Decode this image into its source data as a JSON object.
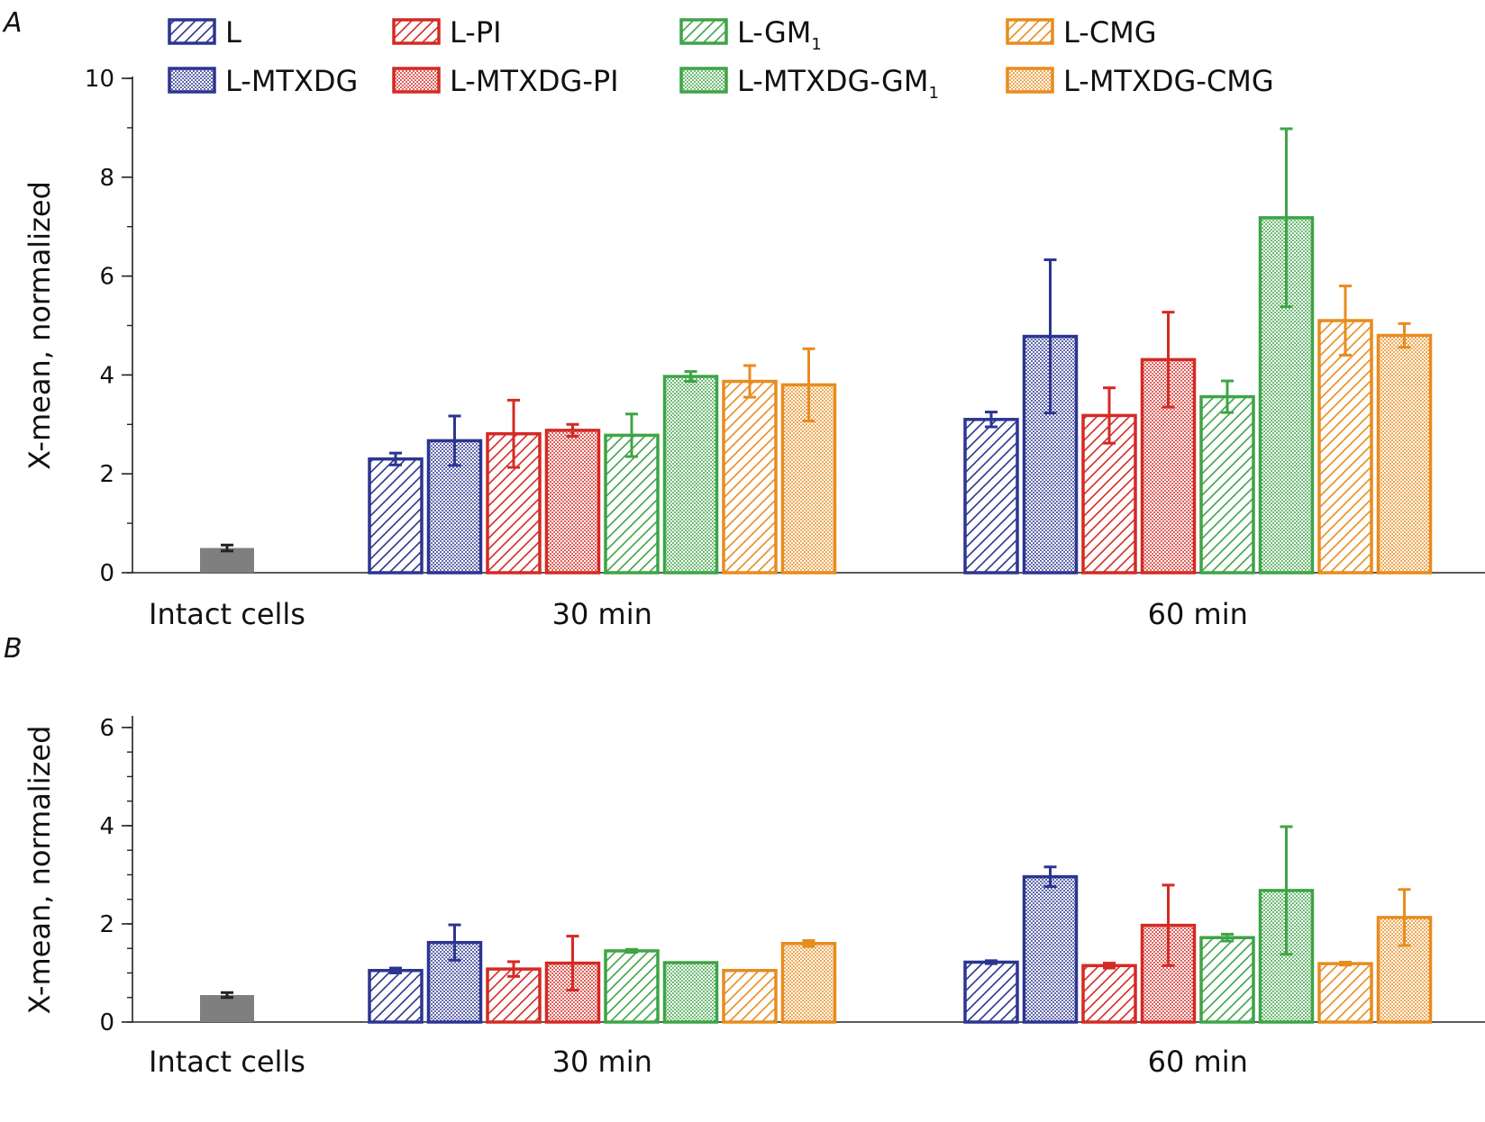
{
  "colors": {
    "L": "#2c3590",
    "L-PI": "#d42a24",
    "L-GM1": "#3fa447",
    "L-CMG": "#e88c1e",
    "intact": "#7f7f7f",
    "axis": "#222222"
  },
  "legend": {
    "entries": [
      {
        "label": "L",
        "sub": "",
        "color_key": "L",
        "pattern": "hatch"
      },
      {
        "label": "L-PI",
        "sub": "",
        "color_key": "L-PI",
        "pattern": "hatch"
      },
      {
        "label": "L-GM",
        "sub": "1",
        "color_key": "L-GM1",
        "pattern": "hatch"
      },
      {
        "label": "L-CMG",
        "sub": "",
        "color_key": "L-CMG",
        "pattern": "hatch"
      },
      {
        "label": "L-MTXDG",
        "sub": "",
        "color_key": "L",
        "pattern": "dots"
      },
      {
        "label": "L-MTXDG-PI",
        "sub": "",
        "color_key": "L-PI",
        "pattern": "dots"
      },
      {
        "label": "L-MTXDG-GM",
        "sub": "1",
        "color_key": "L-GM1",
        "pattern": "dots"
      },
      {
        "label": "L-MTXDG-CMG",
        "sub": "",
        "color_key": "L-CMG",
        "pattern": "dots"
      }
    ]
  },
  "chart_data": [
    {
      "type": "bar",
      "panel": "A",
      "ylabel": "X-mean, normalized",
      "ylim": [
        0,
        10
      ],
      "yticks": [
        0,
        2,
        4,
        6,
        8,
        10
      ],
      "groups": [
        "Intact cells",
        "30 min",
        "60 min"
      ],
      "intact": {
        "value": 0.5,
        "err": 0.06
      },
      "series": [
        {
          "name": "L",
          "color_key": "L",
          "pattern": "hatch",
          "values": [
            2.3,
            3.1
          ],
          "errors": [
            0.12,
            0.15
          ]
        },
        {
          "name": "L-MTXDG",
          "color_key": "L",
          "pattern": "dots",
          "values": [
            2.67,
            4.78
          ],
          "errors": [
            0.5,
            1.55
          ]
        },
        {
          "name": "L-PI",
          "color_key": "L-PI",
          "pattern": "hatch",
          "values": [
            2.81,
            3.18
          ],
          "errors": [
            0.68,
            0.56
          ]
        },
        {
          "name": "L-MTXDG-PI",
          "color_key": "L-PI",
          "pattern": "dots",
          "values": [
            2.88,
            4.31
          ],
          "errors": [
            0.12,
            0.96
          ]
        },
        {
          "name": "L-GM1",
          "color_key": "L-GM1",
          "pattern": "hatch",
          "values": [
            2.78,
            3.56
          ],
          "errors": [
            0.43,
            0.32
          ]
        },
        {
          "name": "L-MTXDG-GM1",
          "color_key": "L-GM1",
          "pattern": "dots",
          "values": [
            3.97,
            7.18
          ],
          "errors": [
            0.1,
            1.8
          ]
        },
        {
          "name": "L-CMG",
          "color_key": "L-CMG",
          "pattern": "hatch",
          "values": [
            3.87,
            5.1
          ],
          "errors": [
            0.32,
            0.7
          ]
        },
        {
          "name": "L-MTXDG-CMG",
          "color_key": "L-CMG",
          "pattern": "dots",
          "values": [
            3.8,
            4.8
          ],
          "errors": [
            0.73,
            0.24
          ]
        }
      ]
    },
    {
      "type": "bar",
      "panel": "B",
      "ylabel": "X-mean, normalized",
      "ylim": [
        0,
        6.2
      ],
      "yticks": [
        0,
        2,
        4,
        6
      ],
      "groups": [
        "Intact cells",
        "30 min",
        "60 min"
      ],
      "intact": {
        "value": 0.55,
        "err": 0.05
      },
      "series": [
        {
          "name": "L",
          "color_key": "L",
          "pattern": "hatch",
          "values": [
            1.05,
            1.22
          ],
          "errors": [
            0.05,
            0.03
          ]
        },
        {
          "name": "L-MTXDG",
          "color_key": "L",
          "pattern": "dots",
          "values": [
            1.62,
            2.96
          ],
          "errors": [
            0.36,
            0.2
          ]
        },
        {
          "name": "L-PI",
          "color_key": "L-PI",
          "pattern": "hatch",
          "values": [
            1.08,
            1.15
          ],
          "errors": [
            0.15,
            0.05
          ]
        },
        {
          "name": "L-MTXDG-PI",
          "color_key": "L-PI",
          "pattern": "dots",
          "values": [
            1.2,
            1.97
          ],
          "errors": [
            0.55,
            0.82
          ]
        },
        {
          "name": "L-GM1",
          "color_key": "L-GM1",
          "pattern": "hatch",
          "values": [
            1.45,
            1.72
          ],
          "errors": [
            0.03,
            0.07
          ]
        },
        {
          "name": "L-MTXDG-GM1",
          "color_key": "L-GM1",
          "pattern": "dots",
          "values": [
            1.21,
            2.68
          ],
          "errors": [
            0.0,
            1.3
          ]
        },
        {
          "name": "L-CMG",
          "color_key": "L-CMG",
          "pattern": "hatch",
          "values": [
            1.05,
            1.19
          ],
          "errors": [
            0.0,
            0.03
          ]
        },
        {
          "name": "L-MTXDG-CMG",
          "color_key": "L-CMG",
          "pattern": "dots",
          "values": [
            1.6,
            2.13
          ],
          "errors": [
            0.06,
            0.57
          ]
        }
      ]
    }
  ]
}
